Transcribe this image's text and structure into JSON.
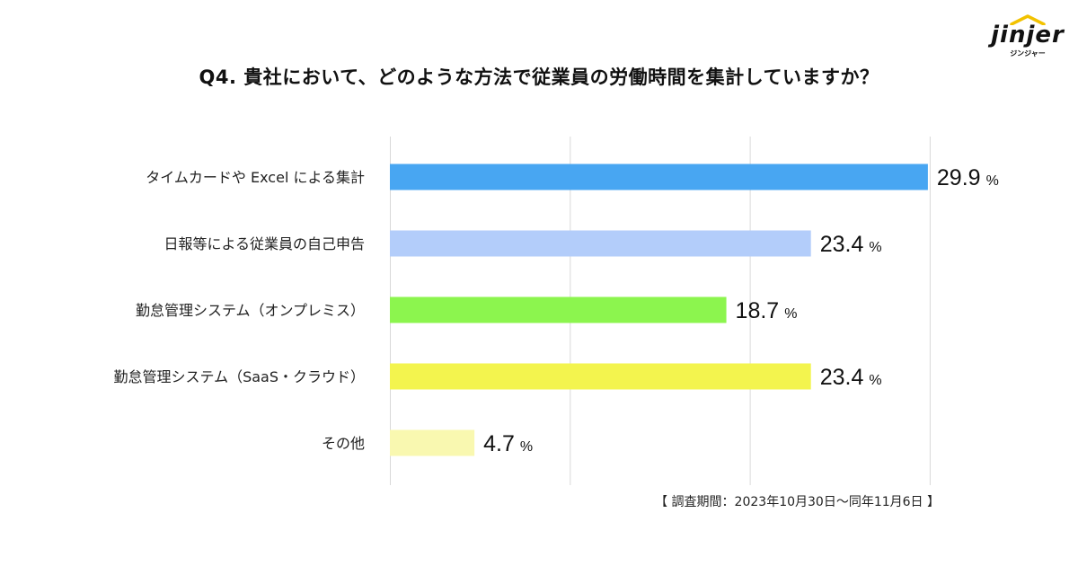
{
  "brand": {
    "name": "jinjer",
    "sub": "ジンジャー"
  },
  "chart_data": {
    "type": "bar",
    "orientation": "horizontal",
    "title": "Q4.  貴社において、どのような方法で従業員の労働時間を集計していますか？",
    "categories": [
      "タイムカードや Excel による集計",
      "日報等による従業員の自己申告",
      "勤怠管理システム（オンプレミス）",
      "勤怠管理システム（SaaS・クラウド）",
      "その他"
    ],
    "values": [
      29.9,
      23.4,
      18.7,
      23.4,
      4.7
    ],
    "unit": "%",
    "colors": [
      "#48a6f2",
      "#b3cdfa",
      "#8cf54e",
      "#f3f44e",
      "#f9f8b0"
    ],
    "xlim": [
      0,
      30
    ],
    "grid": true,
    "gridline_color": "#d9d9d9"
  },
  "footnote": "【 調査期間：2023年10月30日〜同年11月6日 】"
}
